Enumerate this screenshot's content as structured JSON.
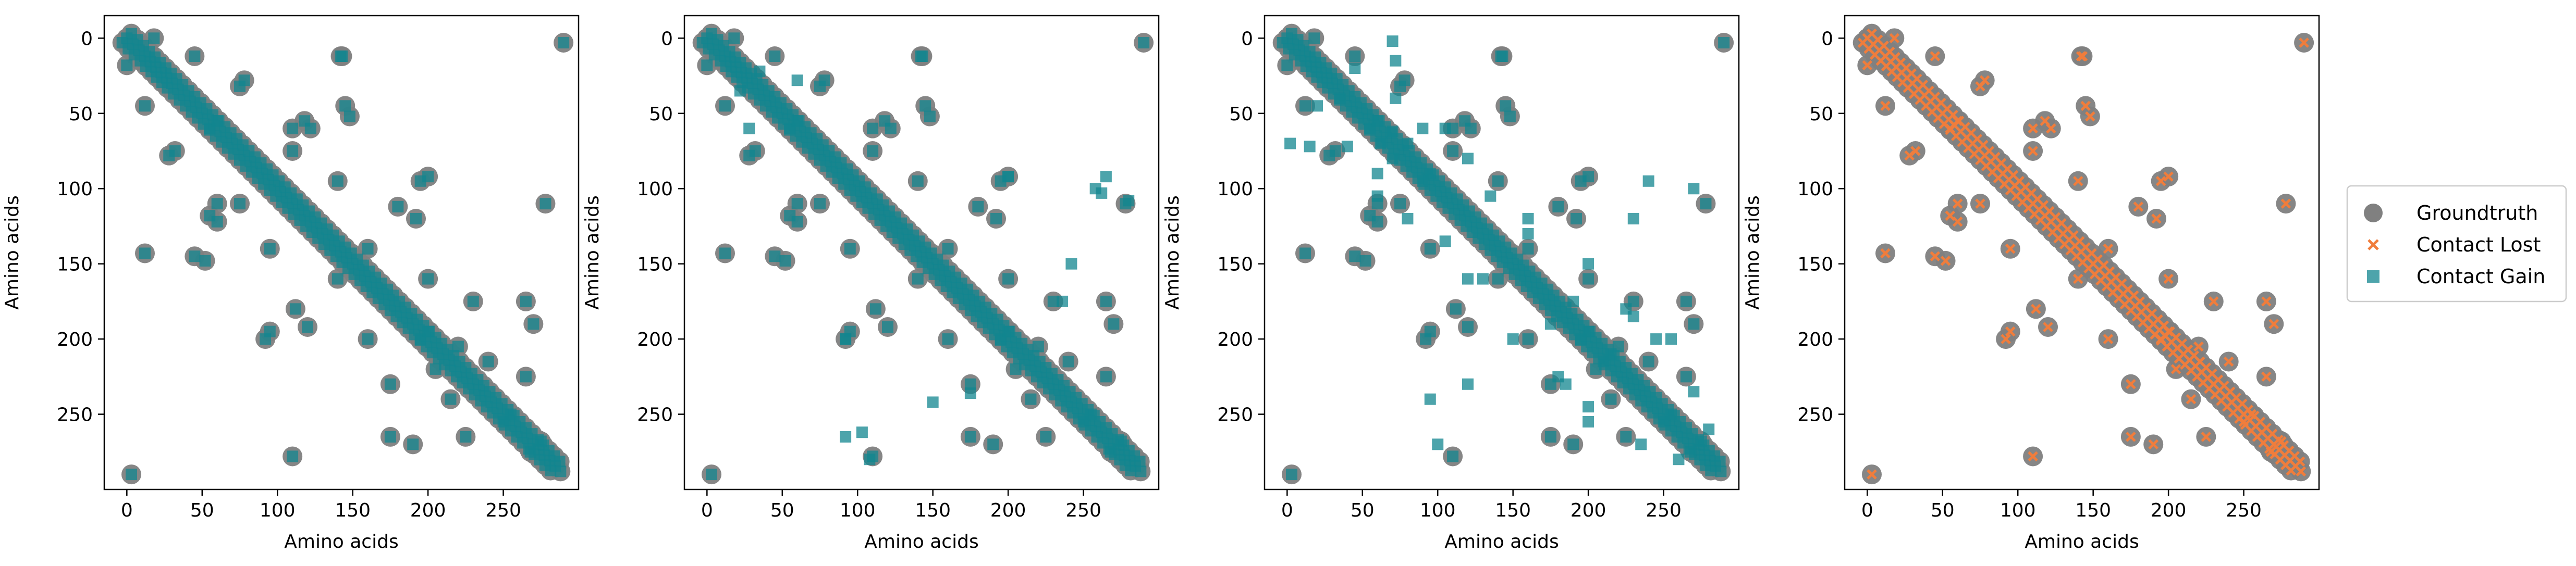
{
  "figure": {
    "legend": {
      "entries": [
        {
          "label": "Groundtruth",
          "marker": "circle",
          "color": "#808080"
        },
        {
          "label": "Contact Lost",
          "marker": "x",
          "color": "#f07d3c"
        },
        {
          "label": "Contact Gain",
          "marker": "square",
          "color": "#11858f"
        }
      ],
      "placement": "right"
    }
  },
  "chart_data": [
    {
      "type": "scatter",
      "xlabel": "Amino acids",
      "ylabel": "Amino acids",
      "xlim": [
        -15,
        300
      ],
      "ylim": [
        300,
        -15
      ],
      "xticks": [
        0,
        50,
        100,
        150,
        200,
        250
      ],
      "yticks": [
        0,
        50,
        100,
        150,
        200,
        250
      ],
      "overlay_series": "Contact Gain",
      "diagonal": {
        "x": [
          0,
          12,
          30,
          50,
          70,
          90,
          110,
          130,
          150,
          170,
          190,
          210,
          230,
          250,
          270,
          288
        ],
        "y": [
          0,
          12,
          30,
          50,
          70,
          90,
          110,
          130,
          150,
          170,
          190,
          210,
          230,
          250,
          270,
          288
        ]
      },
      "clusters": [
        [
          12,
          45
        ],
        [
          45,
          12
        ],
        [
          28,
          78
        ],
        [
          78,
          28
        ],
        [
          55,
          60
        ],
        [
          60,
          55
        ],
        [
          75,
          32
        ],
        [
          32,
          75
        ],
        [
          143,
          12
        ],
        [
          12,
          143
        ],
        [
          148,
          52
        ],
        [
          52,
          148
        ],
        [
          110,
          60
        ],
        [
          60,
          110
        ],
        [
          118,
          55
        ],
        [
          55,
          118
        ],
        [
          122,
          60
        ],
        [
          60,
          122
        ],
        [
          145,
          45
        ],
        [
          45,
          145
        ],
        [
          110,
          75
        ],
        [
          75,
          110
        ],
        [
          140,
          95
        ],
        [
          95,
          140
        ],
        [
          195,
          95
        ],
        [
          95,
          195
        ],
        [
          180,
          112
        ],
        [
          112,
          180
        ],
        [
          192,
          120
        ],
        [
          120,
          192
        ],
        [
          200,
          92
        ],
        [
          92,
          200
        ],
        [
          160,
          140
        ],
        [
          140,
          160
        ],
        [
          200,
          160
        ],
        [
          160,
          200
        ],
        [
          230,
          175
        ],
        [
          175,
          230
        ],
        [
          220,
          205
        ],
        [
          205,
          220
        ],
        [
          240,
          215
        ],
        [
          215,
          240
        ],
        [
          265,
          175
        ],
        [
          175,
          265
        ],
        [
          278,
          110
        ],
        [
          110,
          278
        ],
        [
          270,
          190
        ],
        [
          190,
          270
        ],
        [
          195,
          200
        ],
        [
          200,
          195
        ],
        [
          265,
          225
        ],
        [
          225,
          265
        ],
        [
          250,
          255
        ],
        [
          255,
          250
        ],
        [
          268,
          275
        ],
        [
          275,
          268
        ],
        [
          290,
          3
        ],
        [
          3,
          290
        ],
        [
          0,
          18
        ],
        [
          18,
          0
        ],
        [
          142,
          12
        ]
      ],
      "extra": []
    },
    {
      "type": "scatter",
      "xlabel": "Amino acids",
      "ylabel": "Amino acids",
      "xlim": [
        -15,
        300
      ],
      "ylim": [
        300,
        -15
      ],
      "xticks": [
        0,
        50,
        100,
        150,
        200,
        250
      ],
      "yticks": [
        0,
        50,
        100,
        150,
        200,
        250
      ],
      "overlay_series": "Contact Gain",
      "diagonal": {
        "x": [
          0,
          12,
          30,
          50,
          70,
          90,
          110,
          130,
          150,
          170,
          190,
          210,
          230,
          250,
          270,
          288
        ],
        "y": [
          0,
          12,
          30,
          50,
          70,
          90,
          110,
          130,
          150,
          170,
          190,
          210,
          230,
          250,
          270,
          288
        ]
      },
      "clusters": [
        [
          12,
          45
        ],
        [
          45,
          12
        ],
        [
          28,
          78
        ],
        [
          78,
          28
        ],
        [
          55,
          60
        ],
        [
          60,
          55
        ],
        [
          75,
          32
        ],
        [
          32,
          75
        ],
        [
          143,
          12
        ],
        [
          12,
          143
        ],
        [
          148,
          52
        ],
        [
          52,
          148
        ],
        [
          110,
          60
        ],
        [
          60,
          110
        ],
        [
          118,
          55
        ],
        [
          55,
          118
        ],
        [
          122,
          60
        ],
        [
          60,
          122
        ],
        [
          145,
          45
        ],
        [
          45,
          145
        ],
        [
          110,
          75
        ],
        [
          75,
          110
        ],
        [
          140,
          95
        ],
        [
          95,
          140
        ],
        [
          195,
          95
        ],
        [
          95,
          195
        ],
        [
          180,
          112
        ],
        [
          112,
          180
        ],
        [
          192,
          120
        ],
        [
          120,
          192
        ],
        [
          200,
          92
        ],
        [
          92,
          200
        ],
        [
          160,
          140
        ],
        [
          140,
          160
        ],
        [
          200,
          160
        ],
        [
          160,
          200
        ],
        [
          230,
          175
        ],
        [
          175,
          230
        ],
        [
          220,
          205
        ],
        [
          205,
          220
        ],
        [
          240,
          215
        ],
        [
          215,
          240
        ],
        [
          265,
          175
        ],
        [
          175,
          265
        ],
        [
          278,
          110
        ],
        [
          110,
          278
        ],
        [
          270,
          190
        ],
        [
          190,
          270
        ],
        [
          195,
          200
        ],
        [
          200,
          195
        ],
        [
          265,
          225
        ],
        [
          225,
          265
        ],
        [
          250,
          255
        ],
        [
          255,
          250
        ],
        [
          268,
          275
        ],
        [
          275,
          268
        ],
        [
          290,
          3
        ],
        [
          3,
          290
        ],
        [
          0,
          18
        ],
        [
          18,
          0
        ],
        [
          142,
          12
        ]
      ],
      "extra": [
        [
          262,
          103
        ],
        [
          280,
          108
        ],
        [
          103,
          262
        ],
        [
          108,
          280
        ],
        [
          258,
          100
        ],
        [
          92,
          200
        ],
        [
          200,
          92
        ],
        [
          265,
          92
        ],
        [
          92,
          265
        ],
        [
          242,
          150
        ],
        [
          150,
          242
        ],
        [
          236,
          175
        ],
        [
          175,
          236
        ],
        [
          28,
          60
        ],
        [
          60,
          28
        ],
        [
          22,
          35
        ],
        [
          35,
          22
        ]
      ]
    },
    {
      "type": "scatter",
      "xlabel": "Amino acids",
      "ylabel": "Amino acids",
      "xlim": [
        -15,
        300
      ],
      "ylim": [
        300,
        -15
      ],
      "xticks": [
        0,
        50,
        100,
        150,
        200,
        250
      ],
      "yticks": [
        0,
        50,
        100,
        150,
        200,
        250
      ],
      "overlay_series": "Contact Gain",
      "diagonal": {
        "x": [
          0,
          12,
          30,
          50,
          70,
          90,
          110,
          130,
          150,
          170,
          190,
          210,
          230,
          250,
          270,
          288
        ],
        "y": [
          0,
          12,
          30,
          50,
          70,
          90,
          110,
          130,
          150,
          170,
          190,
          210,
          230,
          250,
          270,
          288
        ]
      },
      "clusters": [
        [
          12,
          45
        ],
        [
          45,
          12
        ],
        [
          28,
          78
        ],
        [
          78,
          28
        ],
        [
          55,
          60
        ],
        [
          60,
          55
        ],
        [
          75,
          32
        ],
        [
          32,
          75
        ],
        [
          143,
          12
        ],
        [
          12,
          143
        ],
        [
          148,
          52
        ],
        [
          52,
          148
        ],
        [
          110,
          60
        ],
        [
          60,
          110
        ],
        [
          118,
          55
        ],
        [
          55,
          118
        ],
        [
          122,
          60
        ],
        [
          60,
          122
        ],
        [
          145,
          45
        ],
        [
          45,
          145
        ],
        [
          110,
          75
        ],
        [
          75,
          110
        ],
        [
          140,
          95
        ],
        [
          95,
          140
        ],
        [
          195,
          95
        ],
        [
          95,
          195
        ],
        [
          180,
          112
        ],
        [
          112,
          180
        ],
        [
          192,
          120
        ],
        [
          120,
          192
        ],
        [
          200,
          92
        ],
        [
          92,
          200
        ],
        [
          160,
          140
        ],
        [
          140,
          160
        ],
        [
          200,
          160
        ],
        [
          160,
          200
        ],
        [
          230,
          175
        ],
        [
          175,
          230
        ],
        [
          220,
          205
        ],
        [
          205,
          220
        ],
        [
          240,
          215
        ],
        [
          215,
          240
        ],
        [
          265,
          175
        ],
        [
          175,
          265
        ],
        [
          278,
          110
        ],
        [
          110,
          278
        ],
        [
          270,
          190
        ],
        [
          190,
          270
        ],
        [
          195,
          200
        ],
        [
          200,
          195
        ],
        [
          265,
          225
        ],
        [
          225,
          265
        ],
        [
          250,
          255
        ],
        [
          255,
          250
        ],
        [
          268,
          275
        ],
        [
          275,
          268
        ],
        [
          290,
          3
        ],
        [
          3,
          290
        ],
        [
          0,
          18
        ],
        [
          18,
          0
        ],
        [
          142,
          12
        ]
      ],
      "extra": [
        [
          70,
          2
        ],
        [
          72,
          15
        ],
        [
          72,
          40
        ],
        [
          62,
          70
        ],
        [
          80,
          70
        ],
        [
          95,
          90
        ],
        [
          105,
          60
        ],
        [
          120,
          80
        ],
        [
          135,
          105
        ],
        [
          160,
          130
        ],
        [
          120,
          160
        ],
        [
          150,
          200
        ],
        [
          175,
          190
        ],
        [
          185,
          230
        ],
        [
          210,
          215
        ],
        [
          245,
          200
        ],
        [
          225,
          180
        ],
        [
          255,
          200
        ],
        [
          270,
          235
        ],
        [
          280,
          260
        ],
        [
          240,
          95
        ],
        [
          230,
          120
        ],
        [
          270,
          100
        ],
        [
          2,
          70
        ],
        [
          15,
          72
        ],
        [
          40,
          72
        ],
        [
          70,
          62
        ],
        [
          70,
          80
        ],
        [
          90,
          95
        ],
        [
          60,
          105
        ],
        [
          80,
          120
        ],
        [
          105,
          135
        ],
        [
          130,
          160
        ],
        [
          160,
          120
        ],
        [
          200,
          150
        ],
        [
          190,
          175
        ],
        [
          230,
          185
        ],
        [
          215,
          210
        ],
        [
          200,
          245
        ],
        [
          180,
          225
        ],
        [
          200,
          255
        ],
        [
          235,
          270
        ],
        [
          260,
          280
        ],
        [
          95,
          240
        ],
        [
          120,
          230
        ],
        [
          100,
          270
        ],
        [
          35,
          40
        ],
        [
          45,
          20
        ],
        [
          20,
          45
        ],
        [
          90,
          60
        ],
        [
          60,
          90
        ]
      ]
    },
    {
      "type": "scatter",
      "xlabel": "Amino acids",
      "ylabel": "Amino acids",
      "xlim": [
        -15,
        300
      ],
      "ylim": [
        300,
        -15
      ],
      "xticks": [
        0,
        50,
        100,
        150,
        200,
        250
      ],
      "yticks": [
        0,
        50,
        100,
        150,
        200,
        250
      ],
      "overlay_series": "Contact Lost",
      "diagonal": {
        "x": [
          0,
          12,
          30,
          50,
          70,
          90,
          110,
          130,
          150,
          170,
          190,
          210,
          230,
          250,
          270,
          288
        ],
        "y": [
          0,
          12,
          30,
          50,
          70,
          90,
          110,
          130,
          150,
          170,
          190,
          210,
          230,
          250,
          270,
          288
        ]
      },
      "clusters": [
        [
          12,
          45
        ],
        [
          45,
          12
        ],
        [
          28,
          78
        ],
        [
          78,
          28
        ],
        [
          55,
          60
        ],
        [
          60,
          55
        ],
        [
          75,
          32
        ],
        [
          32,
          75
        ],
        [
          143,
          12
        ],
        [
          12,
          143
        ],
        [
          148,
          52
        ],
        [
          52,
          148
        ],
        [
          110,
          60
        ],
        [
          60,
          110
        ],
        [
          118,
          55
        ],
        [
          55,
          118
        ],
        [
          122,
          60
        ],
        [
          60,
          122
        ],
        [
          145,
          45
        ],
        [
          45,
          145
        ],
        [
          110,
          75
        ],
        [
          75,
          110
        ],
        [
          140,
          95
        ],
        [
          95,
          140
        ],
        [
          195,
          95
        ],
        [
          95,
          195
        ],
        [
          180,
          112
        ],
        [
          112,
          180
        ],
        [
          192,
          120
        ],
        [
          120,
          192
        ],
        [
          200,
          92
        ],
        [
          92,
          200
        ],
        [
          160,
          140
        ],
        [
          140,
          160
        ],
        [
          200,
          160
        ],
        [
          160,
          200
        ],
        [
          230,
          175
        ],
        [
          175,
          230
        ],
        [
          220,
          205
        ],
        [
          205,
          220
        ],
        [
          240,
          215
        ],
        [
          215,
          240
        ],
        [
          265,
          175
        ],
        [
          175,
          265
        ],
        [
          278,
          110
        ],
        [
          110,
          278
        ],
        [
          270,
          190
        ],
        [
          190,
          270
        ],
        [
          195,
          200
        ],
        [
          200,
          195
        ],
        [
          265,
          225
        ],
        [
          225,
          265
        ],
        [
          250,
          255
        ],
        [
          255,
          250
        ],
        [
          268,
          275
        ],
        [
          275,
          268
        ],
        [
          290,
          3
        ],
        [
          3,
          290
        ],
        [
          0,
          18
        ],
        [
          18,
          0
        ],
        [
          142,
          12
        ]
      ],
      "extra": []
    }
  ]
}
